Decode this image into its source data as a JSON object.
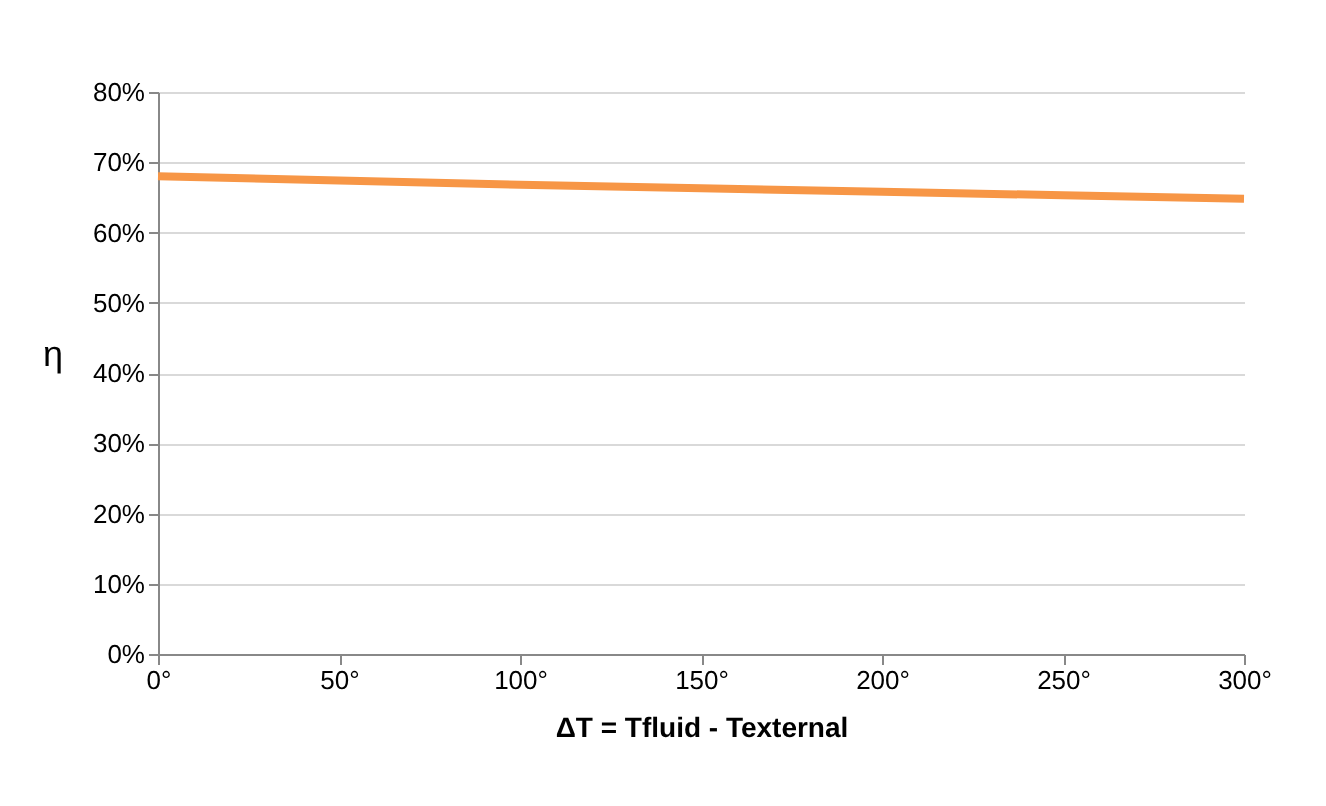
{
  "chart_data": {
    "type": "line",
    "x": [
      0,
      50,
      100,
      150,
      200,
      250,
      300
    ],
    "series": [
      {
        "color": "#f79646",
        "values": [
          68.0,
          67.4,
          66.8,
          66.3,
          65.8,
          65.3,
          64.8
        ]
      }
    ],
    "xlim": [
      0,
      300
    ],
    "xticks": [
      {
        "value": 0,
        "label": "0°"
      },
      {
        "value": 50,
        "label": "50°"
      },
      {
        "value": 100,
        "label": "100°"
      },
      {
        "value": 150,
        "label": "150°"
      },
      {
        "value": 200,
        "label": "200°"
      },
      {
        "value": 250,
        "label": "250°"
      },
      {
        "value": 300,
        "label": "300°"
      }
    ],
    "ylim": [
      0,
      80
    ],
    "yticks": [
      {
        "value": 0,
        "label": "0%"
      },
      {
        "value": 10,
        "label": "10%"
      },
      {
        "value": 20,
        "label": "20%"
      },
      {
        "value": 30,
        "label": "30%"
      },
      {
        "value": 40,
        "label": "40%"
      },
      {
        "value": 50,
        "label": "50%"
      },
      {
        "value": 60,
        "label": "60%"
      },
      {
        "value": 70,
        "label": "70%"
      },
      {
        "value": 80,
        "label": "80%"
      }
    ],
    "xlabel": "ΔT = Tfluid - Texternal",
    "ylabel": "η",
    "grid": "y",
    "marker": "none"
  }
}
